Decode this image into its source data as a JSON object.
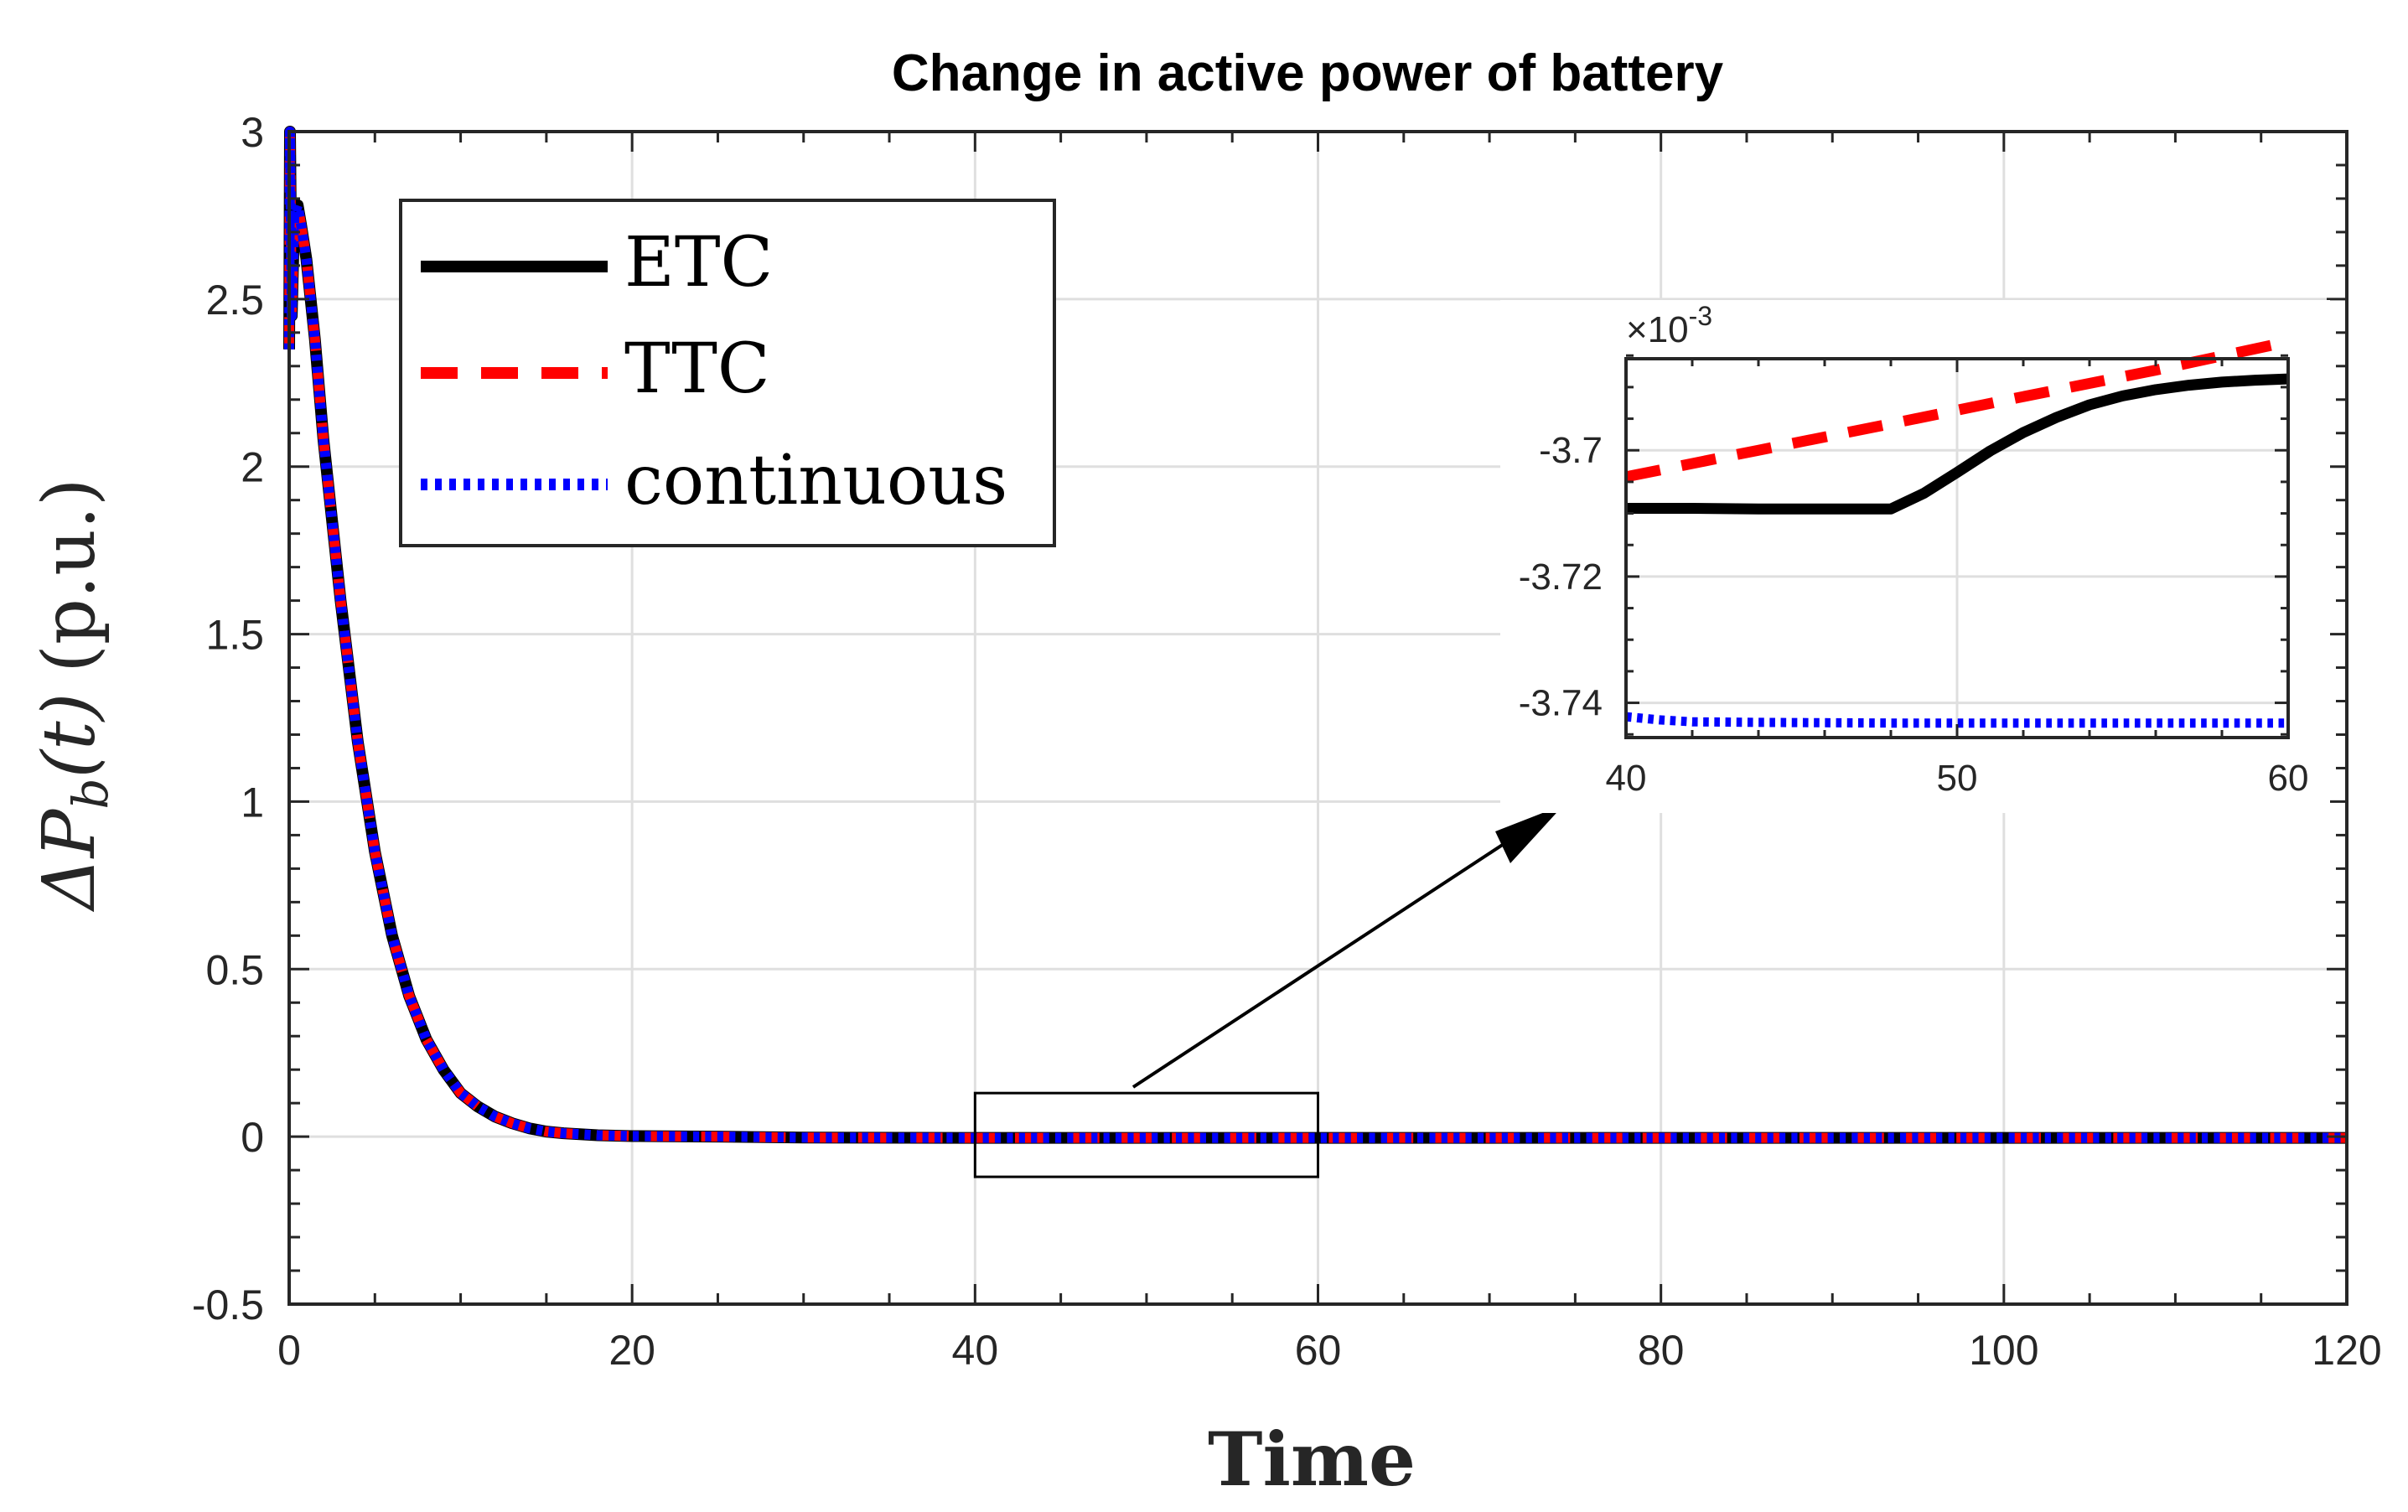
{
  "chart_data": {
    "type": "line",
    "title": "Change in active power of battery",
    "xlabel": "Time",
    "ylabel": "ΔP",
    "ylabel_sub": "b",
    "ylabel_arg": "(t)",
    "ylabel_unit": "(p.u.)",
    "xlim": [
      0,
      120
    ],
    "ylim": [
      -0.5,
      3
    ],
    "xticks": [
      0,
      20,
      40,
      60,
      80,
      100,
      120
    ],
    "yticks": [
      -0.5,
      0,
      0.5,
      1,
      1.5,
      2,
      2.5,
      3
    ],
    "xtick_labels": [
      "0",
      "20",
      "40",
      "60",
      "80",
      "100",
      "120"
    ],
    "ytick_labels": [
      "-0.5",
      "0",
      "0.5",
      "1",
      "1.5",
      "2",
      "2.5",
      "3"
    ],
    "grid": true,
    "legend_position": "top-left",
    "series": [
      {
        "name": "ETC",
        "color": "#000000",
        "style": "solid",
        "x": [
          0,
          0.05,
          0.15,
          0.3,
          0.5,
          0.7,
          1,
          1.5,
          2,
          3,
          4,
          5,
          6,
          7,
          8,
          9,
          10,
          11,
          12,
          13,
          14,
          15,
          16,
          18,
          20,
          25,
          30,
          40,
          60,
          80,
          100,
          120
        ],
        "y": [
          2.35,
          3.0,
          2.45,
          2.75,
          2.78,
          2.72,
          2.62,
          2.38,
          2.08,
          1.6,
          1.18,
          0.85,
          0.6,
          0.42,
          0.29,
          0.2,
          0.13,
          0.09,
          0.06,
          0.04,
          0.025,
          0.015,
          0.01,
          0.004,
          0.0015,
          0.0,
          -0.003,
          -0.0037,
          -0.0037,
          -0.0037,
          -0.0037,
          -0.0037
        ]
      },
      {
        "name": "TTC",
        "color": "#ff0000",
        "style": "dashed",
        "x": [
          0,
          0.05,
          0.15,
          0.3,
          0.5,
          0.7,
          1,
          1.5,
          2,
          3,
          4,
          5,
          6,
          7,
          8,
          9,
          10,
          11,
          12,
          13,
          14,
          15,
          16,
          18,
          20,
          25,
          30,
          40,
          60,
          80,
          100,
          120
        ],
        "y": [
          2.35,
          3.0,
          2.45,
          2.75,
          2.78,
          2.72,
          2.62,
          2.38,
          2.08,
          1.6,
          1.18,
          0.85,
          0.6,
          0.42,
          0.29,
          0.2,
          0.13,
          0.09,
          0.06,
          0.04,
          0.025,
          0.015,
          0.01,
          0.004,
          0.0015,
          0.0,
          -0.003,
          -0.0037,
          -0.0037,
          -0.0037,
          -0.0037,
          -0.0037
        ]
      },
      {
        "name": "continuous",
        "color": "#0000ff",
        "style": "dotted",
        "x": [
          0,
          0.05,
          0.15,
          0.3,
          0.5,
          0.7,
          1,
          1.5,
          2,
          3,
          4,
          5,
          6,
          7,
          8,
          9,
          10,
          11,
          12,
          13,
          14,
          15,
          16,
          18,
          20,
          25,
          30,
          40,
          60,
          80,
          100,
          120
        ],
        "y": [
          2.35,
          3.0,
          2.45,
          2.75,
          2.78,
          2.72,
          2.62,
          2.38,
          2.08,
          1.6,
          1.18,
          0.85,
          0.6,
          0.42,
          0.29,
          0.2,
          0.13,
          0.09,
          0.06,
          0.04,
          0.025,
          0.015,
          0.01,
          0.004,
          0.0015,
          0.0,
          -0.003,
          -0.0037,
          -0.0037,
          -0.0037,
          -0.0037,
          -0.0037
        ]
      }
    ],
    "zoom_box": {
      "xlim": [
        40,
        60
      ],
      "ylim": [
        -0.12,
        0.13
      ]
    },
    "inset": {
      "xlim": [
        40,
        60
      ],
      "ylim": [
        -3.7455,
        -3.6855
      ],
      "xticks": [
        40,
        50,
        60
      ],
      "xtick_labels": [
        "40",
        "50",
        "60"
      ],
      "yticks": [
        -3.74,
        -3.72,
        -3.7
      ],
      "ytick_labels": [
        "-3.74",
        "-3.72",
        "-3.7"
      ],
      "exponent_prefix": "×10",
      "exponent_power": "-3",
      "series": [
        {
          "name": "ETC",
          "color": "#000000",
          "style": "solid",
          "x": [
            40,
            42,
            44,
            46,
            47,
            48,
            49,
            50,
            51,
            52,
            53,
            54,
            55,
            56,
            57,
            58,
            59,
            60
          ],
          "y": [
            -3.7092,
            -3.7092,
            -3.7093,
            -3.7093,
            -3.7093,
            -3.7093,
            -3.7068,
            -3.7035,
            -3.7001,
            -3.6972,
            -3.6948,
            -3.6928,
            -3.6914,
            -3.6904,
            -3.6897,
            -3.6892,
            -3.6889,
            -3.6887
          ]
        },
        {
          "name": "TTC",
          "color": "#ff0000",
          "style": "dashed",
          "x": [
            40,
            44,
            48,
            52,
            56,
            60
          ],
          "y": [
            -3.7042,
            -3.7,
            -3.6958,
            -3.6915,
            -3.6873,
            -3.6828
          ]
        },
        {
          "name": "continuous",
          "color": "#0000ff",
          "style": "dotted",
          "x": [
            40,
            41,
            42,
            44,
            48,
            52,
            56,
            60
          ],
          "y": [
            -3.7422,
            -3.7427,
            -3.743,
            -3.7431,
            -3.7432,
            -3.7432,
            -3.7432,
            -3.7432
          ]
        }
      ]
    }
  }
}
